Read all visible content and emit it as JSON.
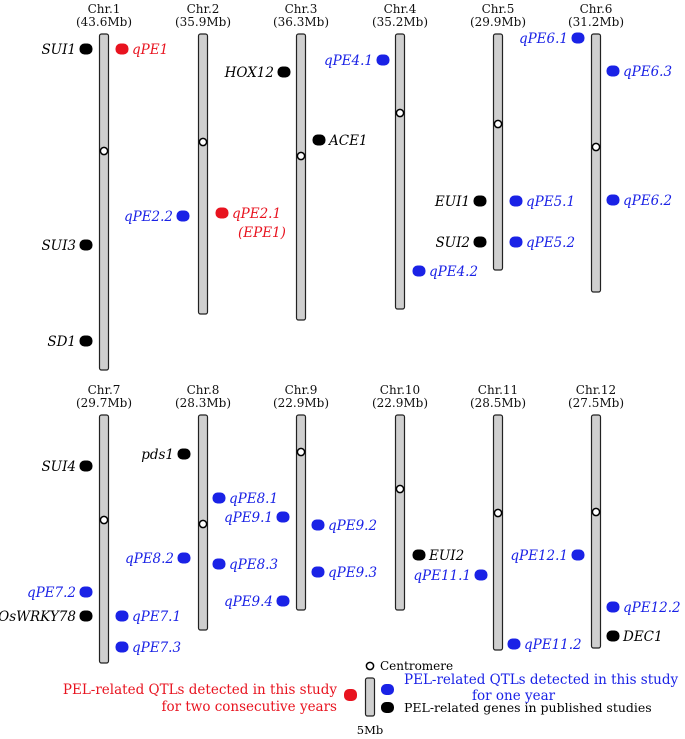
{
  "colors": {
    "two_years": "#e8131f",
    "one_year": "#1a22e6",
    "gene": "#000000",
    "chromosome_fill": "#cfcfcf",
    "chromosome_stroke": "#222222"
  },
  "chromosomes": [
    {
      "name": "Chr.1",
      "length": "(43.6Mb)",
      "markers": [
        {
          "label": "SUI1",
          "kind": "gene"
        },
        {
          "label": "qPE1",
          "kind": "two_years"
        },
        {
          "label": "SUI3",
          "kind": "gene"
        },
        {
          "label": "SD1",
          "kind": "gene"
        }
      ]
    },
    {
      "name": "Chr.2",
      "length": "(35.9Mb)",
      "markers": [
        {
          "label": "qPE2.2",
          "kind": "one_year"
        },
        {
          "label": "qPE2.1",
          "label2": "(EPE1)",
          "kind": "two_years"
        }
      ]
    },
    {
      "name": "Chr.3",
      "length": "(36.3Mb)",
      "markers": [
        {
          "label": "HOX12",
          "kind": "gene"
        },
        {
          "label": "ACE1",
          "kind": "gene"
        }
      ]
    },
    {
      "name": "Chr.4",
      "length": "(35.2Mb)",
      "markers": [
        {
          "label": "qPE4.1",
          "kind": "one_year"
        },
        {
          "label": "qPE4.2",
          "kind": "one_year"
        }
      ]
    },
    {
      "name": "Chr.5",
      "length": "(29.9Mb)",
      "markers": [
        {
          "label": "EUI1",
          "kind": "gene"
        },
        {
          "label": "qPE5.1",
          "kind": "one_year"
        },
        {
          "label": "SUI2",
          "kind": "gene"
        },
        {
          "label": "qPE5.2",
          "kind": "one_year"
        }
      ]
    },
    {
      "name": "Chr.6",
      "length": "(31.2Mb)",
      "markers": [
        {
          "label": "qPE6.1",
          "kind": "one_year"
        },
        {
          "label": "qPE6.3",
          "kind": "one_year"
        },
        {
          "label": "qPE6.2",
          "kind": "one_year"
        }
      ]
    },
    {
      "name": "Chr.7",
      "length": "(29.7Mb)",
      "markers": [
        {
          "label": "SUI4",
          "kind": "gene"
        },
        {
          "label": "qPE7.2",
          "kind": "one_year"
        },
        {
          "label": "OsWRKY78",
          "kind": "gene"
        },
        {
          "label": "qPE7.1",
          "kind": "one_year"
        },
        {
          "label": "qPE7.3",
          "kind": "one_year"
        }
      ]
    },
    {
      "name": "Chr.8",
      "length": "(28.3Mb)",
      "markers": [
        {
          "label": "pds1",
          "kind": "gene"
        },
        {
          "label": "qPE8.1",
          "kind": "one_year"
        },
        {
          "label": "qPE8.2",
          "kind": "one_year"
        },
        {
          "label": "qPE8.3",
          "kind": "one_year"
        }
      ]
    },
    {
      "name": "Chr.9",
      "length": "(22.9Mb)",
      "markers": [
        {
          "label": "qPE9.1",
          "kind": "one_year"
        },
        {
          "label": "qPE9.2",
          "kind": "one_year"
        },
        {
          "label": "qPE9.3",
          "kind": "one_year"
        },
        {
          "label": "qPE9.4",
          "kind": "one_year"
        }
      ]
    },
    {
      "name": "Chr.10",
      "length": "(22.9Mb)",
      "markers": [
        {
          "label": "EUI2",
          "kind": "gene"
        },
        {
          "label": "qPE11.1",
          "kind": "one_year"
        }
      ]
    },
    {
      "name": "Chr.11",
      "length": "(28.5Mb)",
      "markers": [
        {
          "label": "qPE11.2",
          "kind": "one_year"
        }
      ]
    },
    {
      "name": "Chr.12",
      "length": "(27.5Mb)",
      "markers": [
        {
          "label": "qPE12.1",
          "kind": "one_year"
        },
        {
          "label": "qPE12.2",
          "kind": "one_year"
        },
        {
          "label": "DEC1",
          "kind": "gene"
        }
      ]
    }
  ],
  "legend": {
    "centromere": "Centromere",
    "two_years": [
      "PEL-related QTLs detected in this study",
      "for two consecutive years"
    ],
    "one_year": [
      "PEL-related QTLs detected in this study",
      "for one year"
    ],
    "genes": "PEL-related genes in published studies",
    "scale": "5Mb"
  }
}
